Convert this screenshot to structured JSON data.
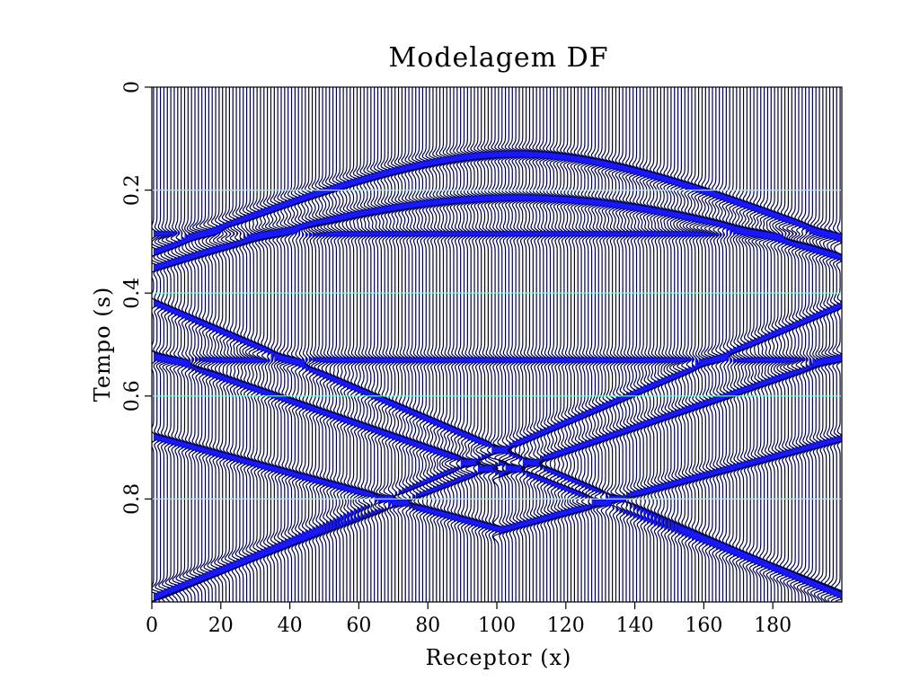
{
  "chart_data": {
    "type": "seismic-wiggle",
    "title": "Modelagem DF",
    "xlabel": "Receptor (x)",
    "ylabel": "Tempo (s)",
    "xlim": [
      0,
      200
    ],
    "ylim": [
      1.0,
      0.0
    ],
    "xticks": [
      0,
      20,
      40,
      60,
      80,
      100,
      120,
      140,
      160,
      180
    ],
    "yticks": [
      0,
      0.2,
      0.4,
      0.6,
      0.8
    ],
    "y_gridlines": [
      0.2,
      0.4,
      0.6,
      0.8
    ],
    "trace_count": 200,
    "trace_color": "#00004a",
    "fill_color": "#1818ff",
    "grid_color": "#7fffd4",
    "events": [
      {
        "kind": "direct-hyperbola",
        "apex_x": 104,
        "apex_t": 0.13,
        "edge_t": 0.32
      },
      {
        "kind": "reflection-hyperbola",
        "apex_x": 104,
        "apex_t": 0.215,
        "edge_t": 0.35
      },
      {
        "kind": "flat",
        "t": 0.285
      },
      {
        "kind": "flat",
        "t": 0.53
      },
      {
        "kind": "dipping-line",
        "x_start": 0,
        "t_start": 0.42,
        "x_end": 200,
        "t_end": 0.99
      },
      {
        "kind": "dipping-line",
        "x_start": 200,
        "t_start": 0.42,
        "x_end": 0,
        "t_end": 0.99
      },
      {
        "kind": "dipping-line",
        "x_start": 0,
        "t_start": 0.52,
        "x_end": 100,
        "t_end": 0.75
      },
      {
        "kind": "dipping-line",
        "x_start": 200,
        "t_start": 0.52,
        "x_end": 100,
        "t_end": 0.75
      },
      {
        "kind": "dipping-line",
        "x_start": 0,
        "t_start": 0.68,
        "x_end": 100,
        "t_end": 0.86
      },
      {
        "kind": "dipping-line",
        "x_start": 200,
        "t_start": 0.68,
        "x_end": 100,
        "t_end": 0.86
      },
      {
        "kind": "dipping-line",
        "x_start": 100,
        "t_start": 0.73,
        "x_end": 0,
        "t_end": 0.99
      },
      {
        "kind": "dipping-line",
        "x_start": 100,
        "t_start": 0.73,
        "x_end": 200,
        "t_end": 0.99
      }
    ]
  }
}
